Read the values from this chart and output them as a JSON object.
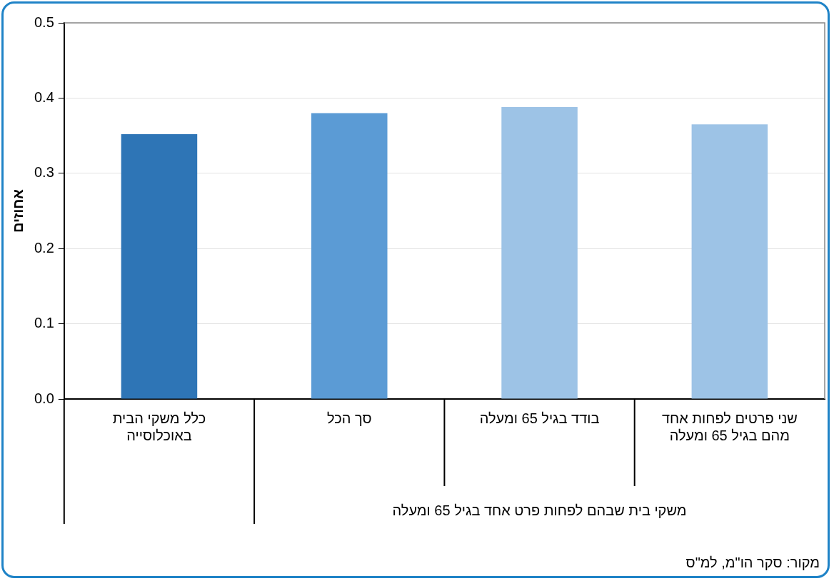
{
  "chart_data": {
    "type": "bar",
    "ylabel": "אחוזים",
    "categories": [
      "כלל משקי הבית באוכלוסייה",
      "סך הכל",
      "בודד בגיל 65 ומעלה",
      "שני פרטים לפחות אחד מהם בגיל 65 ומעלה"
    ],
    "values": [
      0.352,
      0.38,
      0.388,
      0.365
    ],
    "colors": [
      "#2e75b6",
      "#5b9bd5",
      "#9dc3e6",
      "#9dc3e6"
    ],
    "ylim": [
      0,
      0.5
    ],
    "yticks": [
      {
        "value": 0,
        "label": "0.0"
      },
      {
        "value": 0.1,
        "label": "0.1"
      },
      {
        "value": 0.2,
        "label": "0.2"
      },
      {
        "value": 0.3,
        "label": "0.3"
      },
      {
        "value": 0.4,
        "label": "0.4"
      },
      {
        "value": 0.5,
        "label": "0.5"
      }
    ],
    "grid": "y",
    "annotations": [
      "משקי בית שבהם לפחות פרט אחד בגיל 65 ומעלה",
      "מקור: סקר הו\"מ, למ\"ס"
    ]
  }
}
